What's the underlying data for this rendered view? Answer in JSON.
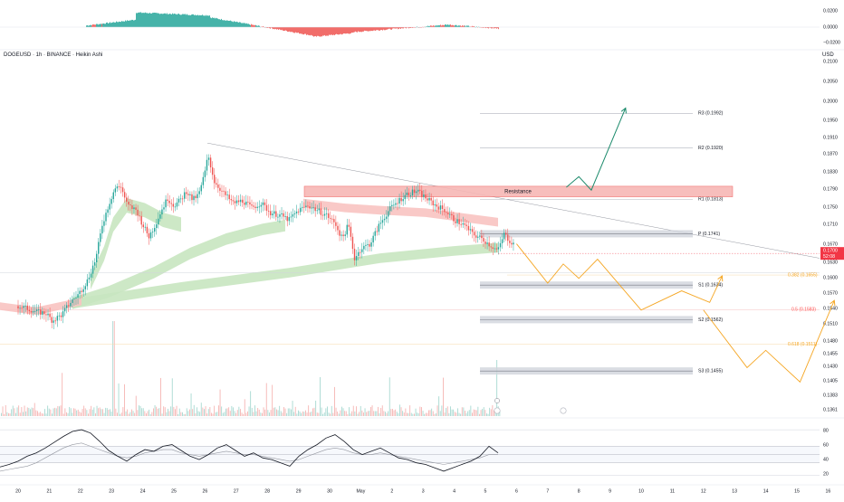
{
  "header": {
    "symbol_line": "DOGEUSD · 1h · BINANCE · Heikin Ashi",
    "currency": "USD"
  },
  "colors": {
    "up": "#26a69a",
    "down": "#ef5350",
    "resistance_fill": "#f7b7b5",
    "pivot_fill": "#d1d4dc",
    "projection": "#f5a623",
    "target_up": "#1b8a6b",
    "price_tag": "#f23645",
    "fib_05": "#ff5252"
  },
  "chart_data": [
    {
      "type": "bar",
      "name": "oscillator-pane",
      "ylim": [
        -0.02,
        0.02
      ],
      "price_scale_labels": [
        "0.0200",
        "0.0000",
        "−0.0200"
      ],
      "description_values": "histogram positive early, negative mid-period, positive late, negative near end"
    },
    {
      "type": "line",
      "name": "price-pane",
      "ylim": [
        0.1361,
        0.21
      ],
      "price_scale_labels": [
        "0.2100",
        "0.2050",
        "0.2000",
        "0.1950",
        "0.1910",
        "0.1870",
        "0.1830",
        "0.1790",
        "0.1750",
        "0.1710",
        "0.1670",
        "0.1630",
        "0.1600",
        "0.1570",
        "0.1540",
        "0.1510",
        "0.1480",
        "0.1455",
        "0.1430",
        "0.1405",
        "0.1383",
        "0.1361"
      ],
      "last_price": {
        "label": "0.1700",
        "time": "52:08"
      },
      "x_tick_labels": [
        "20",
        "21",
        "22",
        "23",
        "24",
        "25",
        "26",
        "27",
        "28",
        "29",
        "30",
        "May",
        "2",
        "3",
        "4",
        "5",
        "6",
        "7",
        "8",
        "9",
        "10",
        "11",
        "12",
        "13",
        "14",
        "15",
        "16"
      ],
      "pivot_levels": [
        {
          "label": "R3 (0.1992)",
          "value": 0.1992
        },
        {
          "label": "R2 (0.1920)",
          "value": 0.192
        },
        {
          "label": "R1 (0.1813)",
          "value": 0.1813
        },
        {
          "label": "P (0.1741)",
          "value": 0.1741
        },
        {
          "label": "S1 (0.1634)",
          "value": 0.1634
        },
        {
          "label": "S2 (0.1562)",
          "value": 0.1562
        },
        {
          "label": "S3 (0.1455)",
          "value": 0.1455
        }
      ],
      "fib_levels": [
        {
          "label": "0.382 (0.1655)",
          "value": 0.1655
        },
        {
          "label": "0.5 (0.1583)",
          "value": 0.1583
        },
        {
          "label": "0.618 (0.1511)",
          "value": 0.1511
        }
      ],
      "resistance_zone": {
        "label": "Resistance",
        "low": 0.1818,
        "high": 0.184
      },
      "price_path": [
        [
          0.0,
          0.159
        ],
        [
          0.3,
          0.1585
        ],
        [
          0.6,
          0.1578
        ],
        [
          0.9,
          0.1575
        ],
        [
          1.1,
          0.156
        ],
        [
          1.4,
          0.1572
        ],
        [
          1.7,
          0.16
        ],
        [
          1.9,
          0.1612
        ],
        [
          2.2,
          0.164
        ],
        [
          2.5,
          0.169
        ],
        [
          2.7,
          0.176
        ],
        [
          2.9,
          0.18
        ],
        [
          3.1,
          0.1835
        ],
        [
          3.3,
          0.184
        ],
        [
          3.5,
          0.18
        ],
        [
          3.8,
          0.179
        ],
        [
          4.0,
          0.176
        ],
        [
          4.2,
          0.1735
        ],
        [
          4.4,
          0.176
        ],
        [
          4.6,
          0.179
        ],
        [
          4.8,
          0.1815
        ],
        [
          5.0,
          0.18
        ],
        [
          5.2,
          0.181
        ],
        [
          5.4,
          0.183
        ],
        [
          5.6,
          0.1812
        ],
        [
          5.8,
          0.1822
        ],
        [
          6.0,
          0.187
        ],
        [
          6.1,
          0.1905
        ],
        [
          6.3,
          0.185
        ],
        [
          6.6,
          0.1825
        ],
        [
          6.9,
          0.1805
        ],
        [
          7.2,
          0.181
        ],
        [
          7.5,
          0.1795
        ],
        [
          7.8,
          0.1805
        ],
        [
          8.1,
          0.1785
        ],
        [
          8.4,
          0.178
        ],
        [
          8.7,
          0.177
        ],
        [
          9.0,
          0.179
        ],
        [
          9.3,
          0.18
        ],
        [
          9.6,
          0.179
        ],
        [
          9.9,
          0.178
        ],
        [
          10.2,
          0.176
        ],
        [
          10.4,
          0.173
        ],
        [
          10.6,
          0.176
        ],
        [
          10.8,
          0.169
        ],
        [
          11.0,
          0.171
        ],
        [
          11.3,
          0.172
        ],
        [
          11.6,
          0.176
        ],
        [
          11.9,
          0.179
        ],
        [
          12.2,
          0.181
        ],
        [
          12.5,
          0.1825
        ],
        [
          12.8,
          0.183
        ],
        [
          13.1,
          0.1815
        ],
        [
          13.4,
          0.18
        ],
        [
          13.7,
          0.179
        ],
        [
          14.0,
          0.177
        ],
        [
          14.3,
          0.176
        ],
        [
          14.6,
          0.174
        ],
        [
          14.9,
          0.173
        ],
        [
          15.2,
          0.1715
        ],
        [
          15.4,
          0.1705
        ],
        [
          15.6,
          0.174
        ],
        [
          15.8,
          0.1725
        ],
        [
          16.0,
          0.1715
        ]
      ],
      "projection_path": [
        [
          16.0,
          0.172
        ],
        [
          17.0,
          0.1638
        ],
        [
          17.5,
          0.1678
        ],
        [
          18.0,
          0.1648
        ],
        [
          18.6,
          0.1688
        ],
        [
          20.0,
          0.1582
        ],
        [
          21.3,
          0.1622
        ],
        [
          22.2,
          0.1598
        ],
        [
          22.6,
          0.1653
        ]
      ],
      "projection_path_2": [
        [
          22.0,
          0.1582
        ],
        [
          23.4,
          0.1462
        ],
        [
          24.0,
          0.1498
        ],
        [
          25.1,
          0.1432
        ],
        [
          26.2,
          0.1602
        ]
      ],
      "target_up_path": [
        [
          17.6,
          0.1838
        ],
        [
          18.0,
          0.186
        ],
        [
          18.4,
          0.1832
        ],
        [
          19.5,
          0.2003
        ]
      ]
    },
    {
      "type": "bar",
      "name": "volume-pane",
      "description_values": "volume bars at bottom of price pane, highest spike near day 23 and near day 5"
    },
    {
      "type": "line",
      "name": "rsi-pane",
      "ylim": [
        20,
        90
      ],
      "scale_labels": [
        "80",
        "60",
        "40",
        "20"
      ],
      "bands": [
        60,
        50,
        40
      ],
      "series": [
        {
          "name": "",
          "values": [
            35,
            38,
            42,
            48,
            52,
            58,
            65,
            72,
            78,
            80,
            76,
            66,
            55,
            48,
            42,
            50,
            56,
            54,
            60,
            62,
            55,
            48,
            44,
            50,
            58,
            62,
            55,
            48,
            52,
            46,
            44,
            40,
            36,
            48,
            56,
            62,
            70,
            74,
            66,
            56,
            50,
            54,
            58,
            52,
            46,
            44,
            40,
            38,
            34,
            30,
            34,
            38,
            42,
            48,
            60,
            52
          ]
        },
        {
          "name": "",
          "values": [
            30,
            32,
            34,
            36,
            40,
            46,
            52,
            58,
            62,
            64,
            60,
            56,
            52,
            48,
            46,
            48,
            52,
            54,
            56,
            56,
            52,
            50,
            48,
            50,
            52,
            54,
            52,
            50,
            50,
            48,
            46,
            44,
            42,
            44,
            48,
            52,
            56,
            58,
            56,
            52,
            50,
            50,
            52,
            50,
            48,
            46,
            44,
            42,
            40,
            38,
            40,
            42,
            44,
            46,
            50,
            50
          ]
        }
      ]
    }
  ]
}
